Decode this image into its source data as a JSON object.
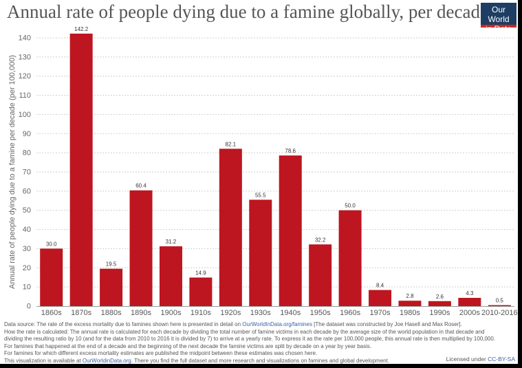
{
  "header": {
    "title": "Annual rate of people dying due to a famine globally, per decade",
    "logo_line1": "Our World",
    "logo_line2": "in Data"
  },
  "colors": {
    "bar": "#bd1620",
    "logo_bg": "#1d3d63",
    "logo_accent": "#ce261e",
    "grid": "#cfcfcf"
  },
  "chart_data": {
    "type": "bar",
    "title": "Annual rate of people dying due to a famine globally, per decade",
    "xlabel": "",
    "ylabel": "Annual rate of people dying due to a famine per decade (per 100,000)",
    "categories": [
      "1860s",
      "1870s",
      "1880s",
      "1890s",
      "1900s",
      "1910s",
      "1920s",
      "1930s",
      "1940s",
      "1950s",
      "1960s",
      "1970s",
      "1980s",
      "1990s",
      "2000s",
      "2010-2016"
    ],
    "values": [
      30.0,
      142.2,
      19.5,
      60.4,
      31.2,
      14.9,
      82.1,
      55.5,
      78.6,
      32.2,
      50.0,
      8.4,
      2.8,
      2.6,
      4.3,
      0.5
    ],
    "value_labels": [
      "30.0",
      "142.2",
      "19.5",
      "60.4",
      "31.2",
      "14.9",
      "82.1",
      "55.5",
      "78.6",
      "32.2",
      "50.0",
      "8.4",
      "2.8",
      "2.6",
      "4.3",
      "0.5"
    ],
    "ylim": [
      0,
      140
    ],
    "yticks": [
      0,
      10,
      20,
      30,
      40,
      50,
      60,
      70,
      80,
      90,
      100,
      110,
      120,
      130,
      140
    ],
    "grid": true
  },
  "footer": {
    "line1_pre": "Data source: The rate of the excess mortality due to famines shown here is presented in detail on ",
    "line1_link": "OurWorldInData.org/famines",
    "line1_post": " [The dataset was constructed by Joe Hasell and Max Roser].",
    "line2": "How the rate is calculated: The annual rate is calculated for each decade by dividing the total number of famine victims in each decade by the average size of the world population in that decade and",
    "line3": "dividing the resulting ratio by 10 (and for the data from 2010 to 2016 it is divided by 7) to arrive at a yearly rate. To express it as the rate per 100,000 people, this annual rate is then multiplied by 100,000.",
    "line4": "For famines that happened at the end of a decade and the beginning of the next decade the famine victims are split by decade on a year by year basis.",
    "line5": "For famines for which different excess mortality estimates are published the midpoint between these estimates was chosen here.",
    "line6_pre": "This visualization is available at ",
    "line6_link": "OurWorldinData.org",
    "line6_post": ". There you find the full dataset and more research and visualizations on famines and global development.",
    "license_pre": "Licensed under ",
    "license_link": "CC-BY-SA"
  }
}
